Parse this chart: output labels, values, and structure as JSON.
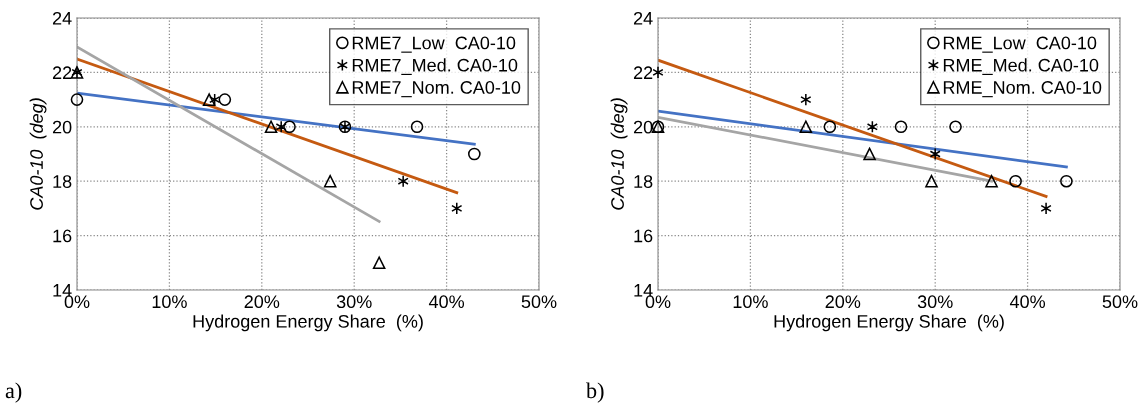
{
  "chart_data": [
    {
      "type": "scatter",
      "xlabel": "Hydrogen Energy Share  (%)",
      "ylabel": "CA0-10  (deg)",
      "annotations": [
        "a)"
      ],
      "xlim": [
        0,
        50
      ],
      "xticks": [
        {
          "value": 0,
          "label": "0%"
        },
        {
          "value": 10,
          "label": "10%"
        },
        {
          "value": 20,
          "label": "20%"
        },
        {
          "value": 30,
          "label": "30%"
        },
        {
          "value": 40,
          "label": "40%"
        },
        {
          "value": 50,
          "label": "50%"
        }
      ],
      "ylim": [
        14,
        24
      ],
      "yticks": [
        14,
        16,
        18,
        20,
        22,
        24
      ],
      "grid": true,
      "legend": "top right",
      "series": [
        {
          "name": "RME7_Low  CA0-10",
          "color": "#000000",
          "marker": "circle",
          "x": [
            0,
            16.0,
            23.0,
            29.0,
            36.8,
            43.0
          ],
          "values": [
            21,
            21,
            20,
            20,
            20,
            19
          ]
        },
        {
          "name": "RME7_Med. CA0-10",
          "color": "#000000",
          "marker": "cross",
          "x": [
            0,
            14.9,
            22.1,
            29.0,
            35.3,
            41.1
          ],
          "values": [
            22,
            21,
            20,
            20,
            18,
            17
          ]
        },
        {
          "name": "RME7_Nom. CA0-10",
          "color": "#000000",
          "marker": "triangle",
          "x": [
            0,
            14.3,
            21.0,
            27.4,
            32.7
          ],
          "values": [
            22,
            21,
            20,
            18,
            15
          ]
        },
        {
          "type": "line",
          "color": "#4472c4",
          "x": [
            0,
            43.0
          ],
          "values": [
            21.24,
            19.36
          ]
        },
        {
          "type": "line",
          "color": "#c55a11",
          "x": [
            0,
            41.1
          ],
          "values": [
            22.49,
            17.58
          ]
        },
        {
          "type": "line",
          "color": "#a5a5a5",
          "x": [
            0,
            32.7
          ],
          "values": [
            22.94,
            16.52
          ]
        }
      ]
    },
    {
      "type": "scatter",
      "xlabel": "Hydrogen Energy Share  (%)",
      "ylabel": "CA0-10  (deg)",
      "annotations": [
        "b)"
      ],
      "xlim": [
        0,
        50
      ],
      "xticks": [
        {
          "value": 0,
          "label": "0%"
        },
        {
          "value": 10,
          "label": "10%"
        },
        {
          "value": 20,
          "label": "20%"
        },
        {
          "value": 30,
          "label": "30%"
        },
        {
          "value": 40,
          "label": "40%"
        },
        {
          "value": 50,
          "label": "50%"
        }
      ],
      "ylim": [
        14,
        24
      ],
      "yticks": [
        14,
        16,
        18,
        20,
        22,
        24
      ],
      "grid": true,
      "legend": "top right",
      "series": [
        {
          "name": "RME_Low  CA0-10",
          "color": "#000000",
          "marker": "circle",
          "x": [
            0,
            18.6,
            26.3,
            32.2,
            38.7,
            44.2
          ],
          "values": [
            20,
            20,
            20,
            20,
            18,
            18
          ]
        },
        {
          "name": "RME_Med. CA0-10",
          "color": "#000000",
          "marker": "cross",
          "x": [
            0,
            16.0,
            23.2,
            30.0,
            42.0
          ],
          "values": [
            22,
            21,
            20,
            19,
            17
          ]
        },
        {
          "name": "RME_Nom. CA0-10",
          "color": "#000000",
          "marker": "triangle",
          "x": [
            0,
            16.0,
            22.9,
            29.6,
            36.1
          ],
          "values": [
            20,
            20,
            19,
            18,
            18
          ]
        },
        {
          "type": "line",
          "color": "#4472c4",
          "x": [
            0,
            44.2
          ],
          "values": [
            20.58,
            18.52
          ]
        },
        {
          "type": "line",
          "color": "#c55a11",
          "x": [
            0,
            42.0
          ],
          "values": [
            22.45,
            17.44
          ]
        },
        {
          "type": "line",
          "color": "#a5a5a5",
          "x": [
            0,
            36.1
          ],
          "values": [
            20.35,
            18.0
          ]
        }
      ]
    }
  ]
}
